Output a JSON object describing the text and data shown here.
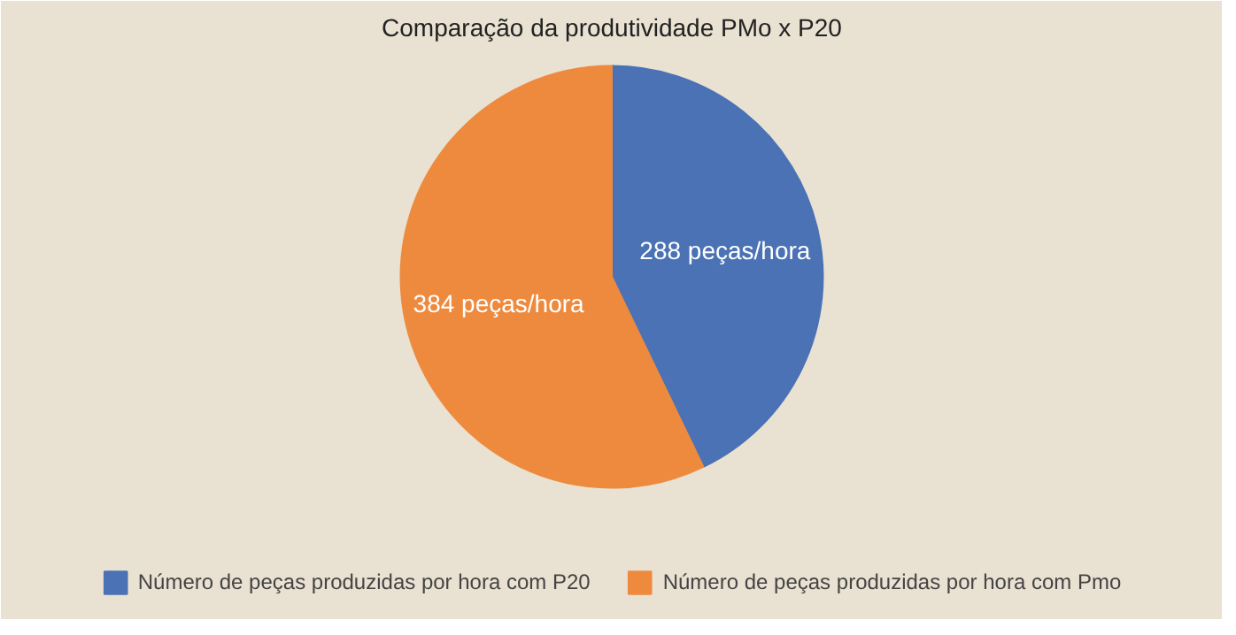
{
  "chart_data": {
    "type": "pie",
    "title": "Comparação da produtividade PMo x P20",
    "categories": [
      "Número de peças produzidas por hora com P20",
      "Número de peças produzidas por hora com Pmo"
    ],
    "values": [
      288,
      384
    ],
    "colors": [
      "#4a72b4",
      "#ee8a3e"
    ],
    "value_labels": [
      "288 peças/hora",
      "384 peças/hora"
    ],
    "legend": "bottom"
  }
}
